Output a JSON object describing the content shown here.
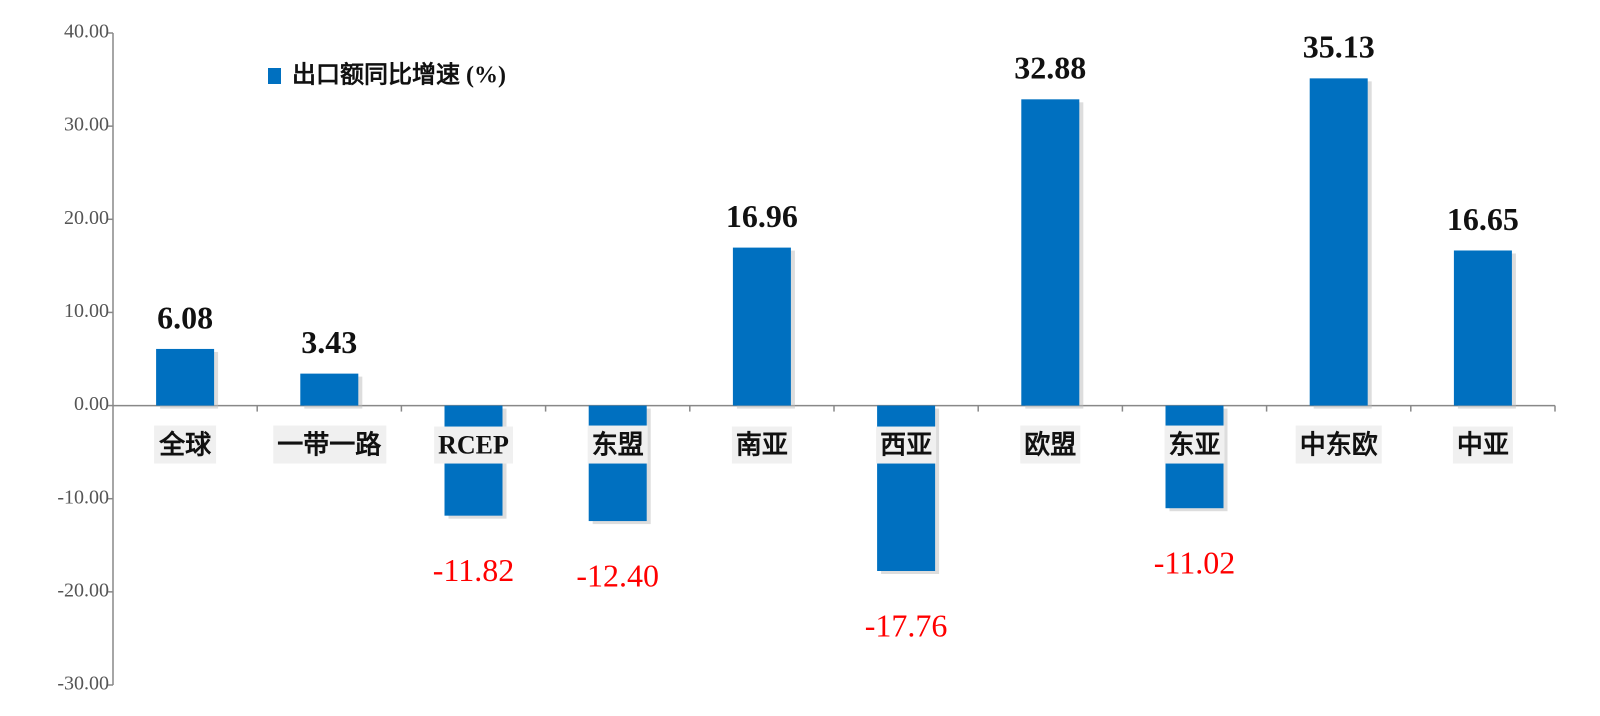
{
  "chart_data": {
    "type": "bar",
    "categories": [
      "全球",
      "一带一路",
      "RCEP",
      "东盟",
      "南亚",
      "西亚",
      "欧盟",
      "东亚",
      "中东欧",
      "中亚"
    ],
    "series": [
      {
        "name": "出口额同比增速 (%)",
        "color": "#0070c0",
        "values": [
          6.08,
          3.43,
          -11.82,
          -12.4,
          16.96,
          -17.76,
          32.88,
          -11.02,
          35.13,
          16.65
        ],
        "value_labels": [
          "6.08",
          "3.43",
          "-11.82",
          "-12.40",
          "16.96",
          "-17.76",
          "32.88",
          "-11.02",
          "35.13",
          "16.65"
        ]
      }
    ],
    "ylim": [
      -30,
      40
    ],
    "yticks": [
      {
        "value": -30,
        "label": "-30.00"
      },
      {
        "value": -20,
        "label": "-20.00"
      },
      {
        "value": -10,
        "label": "-10.00"
      },
      {
        "value": 0,
        "label": "0.00"
      },
      {
        "value": 10,
        "label": "10.00"
      },
      {
        "value": 20,
        "label": "20.00"
      },
      {
        "value": 30,
        "label": "30.00"
      },
      {
        "value": 40,
        "label": "40.00"
      }
    ],
    "positive_label_color": "#111111",
    "negative_label_color": "#ff0000"
  }
}
